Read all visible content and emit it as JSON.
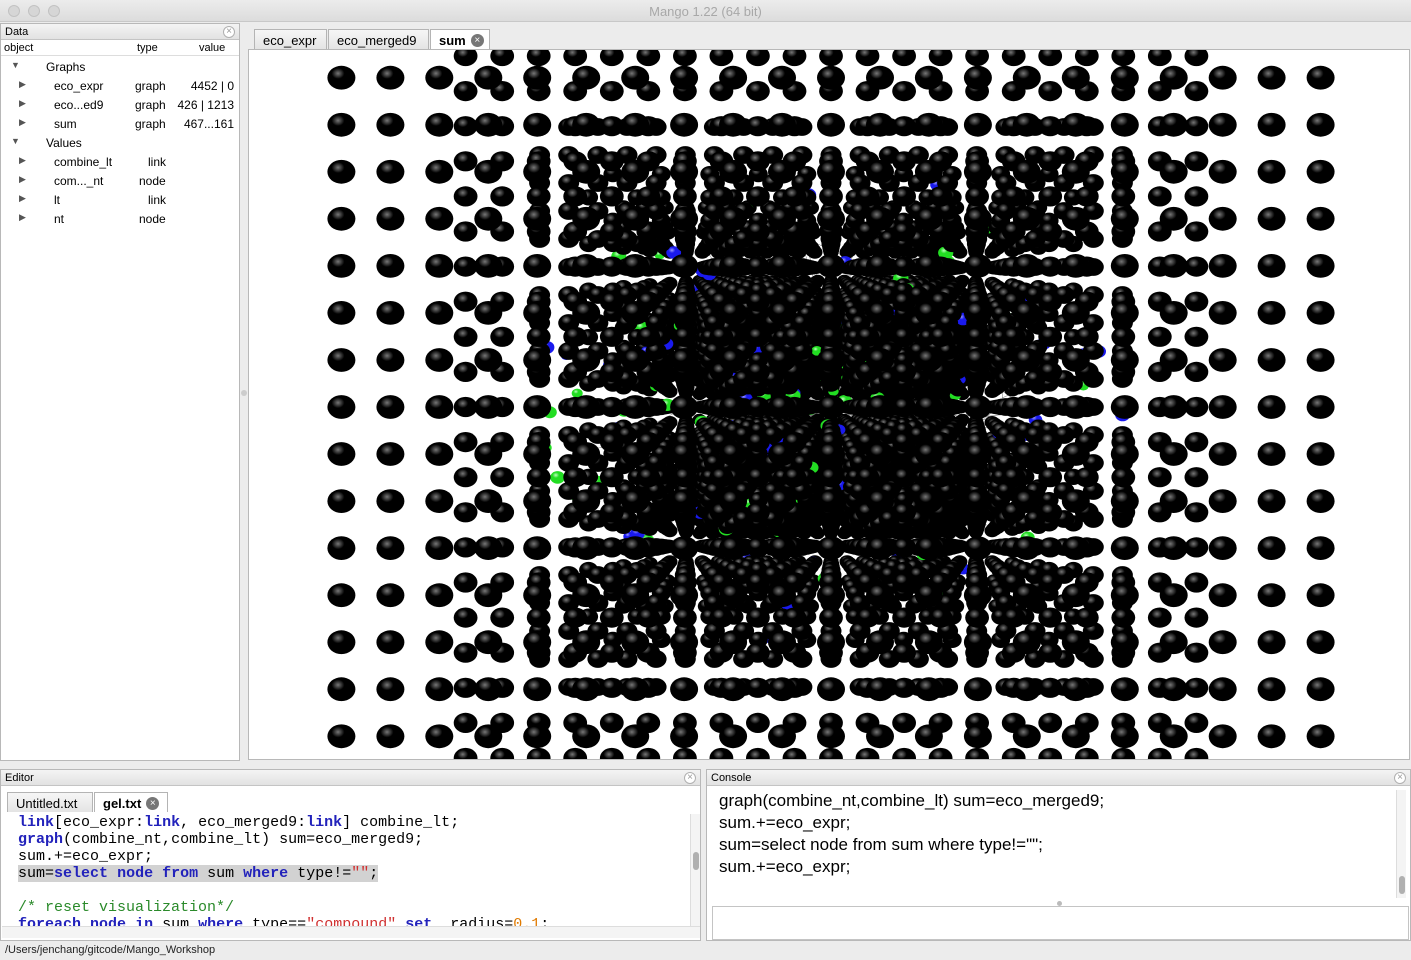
{
  "window": {
    "title": "Mango 1.22 (64 bit)"
  },
  "data_panel": {
    "title": "Data",
    "columns": {
      "object": "object",
      "type": "type",
      "value": "value"
    },
    "rows": [
      {
        "level": 0,
        "name": "Graphs",
        "type": "",
        "value": "",
        "expanded": true
      },
      {
        "level": 1,
        "name": "eco_expr",
        "type": "graph",
        "value": "4452 | 0"
      },
      {
        "level": 1,
        "name": "eco...ed9",
        "type": "graph",
        "value": "426 | 1213"
      },
      {
        "level": 1,
        "name": "sum",
        "type": "graph",
        "value": "467...161"
      },
      {
        "level": 0,
        "name": "Values",
        "type": "",
        "value": "",
        "expanded": true
      },
      {
        "level": 1,
        "name": "combine_lt",
        "type": "link",
        "value": ""
      },
      {
        "level": 1,
        "name": "com..._nt",
        "type": "node",
        "value": ""
      },
      {
        "level": 1,
        "name": "lt",
        "type": "link",
        "value": ""
      },
      {
        "level": 1,
        "name": "nt",
        "type": "node",
        "value": ""
      }
    ]
  },
  "graph_tabs": [
    {
      "label": "eco_expr",
      "active": false
    },
    {
      "label": "eco_merged9",
      "active": false
    },
    {
      "label": "sum",
      "active": true
    }
  ],
  "editor": {
    "title": "Editor",
    "tabs": [
      {
        "label": "Untitled.txt",
        "active": false
      },
      {
        "label": "gel.txt",
        "active": true
      }
    ],
    "lines": [
      [
        [
          "t",
          "link"
        ],
        [
          "n",
          "["
        ],
        [
          "t",
          "eco_expr"
        ],
        [
          "n",
          ":"
        ],
        [
          "k",
          "link"
        ],
        [
          "n",
          ", "
        ],
        [
          "t",
          "eco_merged9"
        ],
        [
          "n",
          ":"
        ],
        [
          "k",
          "link"
        ],
        [
          "n",
          "] "
        ],
        [
          "t",
          "combine_lt"
        ],
        [
          "n",
          ";"
        ]
      ],
      [
        [
          "k",
          "graph"
        ],
        [
          "n",
          "("
        ],
        [
          "t",
          "combine_nt"
        ],
        [
          "n",
          ","
        ],
        [
          "t",
          "combine_lt"
        ],
        [
          "n",
          ") "
        ],
        [
          "t",
          "sum"
        ],
        [
          "n",
          "="
        ],
        [
          "t",
          "eco_merged9"
        ],
        [
          "n",
          ";"
        ]
      ],
      [
        [
          "t",
          "sum"
        ],
        [
          "n",
          ".+="
        ],
        [
          "t",
          "eco_expr"
        ],
        [
          "n",
          ";"
        ]
      ],
      [
        [
          "t",
          "sum"
        ],
        [
          "n",
          "="
        ],
        [
          "k",
          "select"
        ],
        [
          "n",
          " "
        ],
        [
          "k",
          "node"
        ],
        [
          "n",
          " "
        ],
        [
          "k",
          "from"
        ],
        [
          "n",
          " "
        ],
        [
          "t",
          "sum"
        ],
        [
          "n",
          " "
        ],
        [
          "k",
          "where"
        ],
        [
          "n",
          " "
        ],
        [
          "t",
          "type"
        ],
        [
          "n",
          "!="
        ],
        [
          "s",
          "\"\""
        ],
        [
          "n",
          ";"
        ]
      ],
      [],
      [
        [
          "c",
          "/* reset visualization*/"
        ]
      ],
      [
        [
          "k",
          "foreach"
        ],
        [
          "n",
          " "
        ],
        [
          "k",
          "node"
        ],
        [
          "n",
          " "
        ],
        [
          "k",
          "in"
        ],
        [
          "n",
          " "
        ],
        [
          "t",
          "sum"
        ],
        [
          "n",
          " "
        ],
        [
          "k",
          "where"
        ],
        [
          "n",
          " "
        ],
        [
          "t",
          "type"
        ],
        [
          "n",
          "=="
        ],
        [
          "s",
          "\"compound\""
        ],
        [
          "n",
          " "
        ],
        [
          "k",
          "set"
        ],
        [
          "n",
          "  "
        ],
        [
          "t",
          "radius"
        ],
        [
          "n",
          "="
        ],
        [
          "u",
          "0.1"
        ],
        [
          "n",
          ";"
        ]
      ]
    ],
    "highlighted_line": 3
  },
  "console": {
    "title": "Console",
    "lines": [
      "graph(combine_nt,combine_lt) sum=eco_merged9;",
      "sum.+=eco_expr;",
      "sum=select node from sum where type!=\"\";",
      "sum.+=eco_expr;"
    ],
    "input_value": ""
  },
  "status": {
    "path": "/Users/jenchang/gitcode/Mango_Workshop"
  },
  "colors": {
    "node_black": "#000000",
    "node_green": "#22dd22",
    "node_blue": "#1a1aee",
    "edge": "#333333"
  },
  "visualization": {
    "description": ""
  }
}
